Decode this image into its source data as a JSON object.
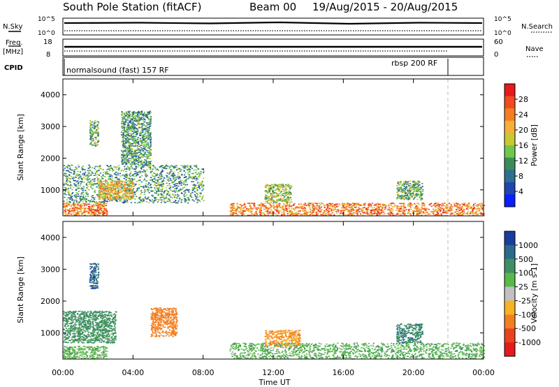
{
  "header": {
    "station": "South Pole Station (fitACF)",
    "beam": "Beam 00",
    "dates": "19/Aug/2015 - 20/Aug/2015"
  },
  "panels": {
    "sky_label": "N.Sky",
    "search_label": "N.Search",
    "freq_label": "Freq.",
    "freq_unit": "[MHz]",
    "nave_label": "Nave",
    "cpid_label": "CPID",
    "cpid_1": "normalsound (fast) 157 RF",
    "cpid_2": "rbsp 200 RF",
    "noise_left_ticks": [
      "10^5",
      "10^0"
    ],
    "noise_right_ticks": [
      "10^5",
      "10^0"
    ],
    "freq_ticks": [
      "18",
      "8"
    ],
    "nave_ticks": [
      "60",
      "0"
    ]
  },
  "axes": {
    "ylabel": "Slant Range [km]",
    "xlabel": "Time UT",
    "yticks": [
      "4000",
      "3000",
      "2000",
      "1000"
    ],
    "xticks": [
      "00:00",
      "04:00",
      "08:00",
      "12:00",
      "16:00",
      "20:00",
      "00:00"
    ]
  },
  "colorbars": {
    "power": {
      "label": "Power [dB]",
      "ticks": [
        "28",
        "24",
        "20",
        "16",
        "12",
        "8",
        "4"
      ],
      "colors": [
        "#e41a1c",
        "#f24a1f",
        "#f47f20",
        "#f6b03a",
        "#c8c832",
        "#6fc84a",
        "#3c8c5a",
        "#2e6f8f",
        "#1e46b0",
        "#0a1eff"
      ]
    },
    "velocity": {
      "label": "Velocity [m s-1]",
      "ticks": [
        "1000",
        "500",
        "100",
        "25",
        "-25",
        "-100",
        "-500",
        "-1000"
      ],
      "colors": [
        "#1a3c9c",
        "#2b6a8a",
        "#3f8f63",
        "#5ab84a",
        "#c0c0c0",
        "#f6b324",
        "#f47f20",
        "#e8431c",
        "#e41a1c"
      ]
    }
  },
  "chart_data": [
    {
      "type": "heatmap",
      "title": "South Pole Station (fitACF) Beam 00 19/Aug/2015 - 20/Aug/2015",
      "ylabel": "Slant Range [km]",
      "xlabel": "Time UT",
      "xlim": [
        0,
        24
      ],
      "ylim": [
        180,
        4500
      ],
      "z_label": "Power [dB]",
      "z_range": [
        0,
        30
      ],
      "echo_regions": [
        {
          "t0": 0.0,
          "t1": 2.5,
          "r0": 200,
          "r1": 600,
          "level": 24
        },
        {
          "t0": 0.0,
          "t1": 8.0,
          "r0": 600,
          "r1": 1800,
          "level": 12
        },
        {
          "t0": 1.5,
          "t1": 2.0,
          "r0": 2400,
          "r1": 3200,
          "level": 14
        },
        {
          "t0": 3.3,
          "t1": 5.0,
          "r0": 1800,
          "r1": 3500,
          "level": 12
        },
        {
          "t0": 2.0,
          "t1": 4.0,
          "r0": 700,
          "r1": 1300,
          "level": 20
        },
        {
          "t0": 9.5,
          "t1": 24.0,
          "r0": 200,
          "r1": 600,
          "level": 24
        },
        {
          "t0": 11.5,
          "t1": 13.0,
          "r0": 600,
          "r1": 1200,
          "level": 16
        },
        {
          "t0": 19.0,
          "t1": 20.5,
          "r0": 700,
          "r1": 1300,
          "level": 14
        }
      ]
    },
    {
      "type": "heatmap",
      "title": "",
      "ylabel": "Slant Range [km]",
      "xlabel": "Time UT",
      "xlim": [
        0,
        24
      ],
      "ylim": [
        180,
        4500
      ],
      "z_label": "Velocity [m s-1]",
      "z_range": [
        -1000,
        1000
      ],
      "echo_regions": [
        {
          "t0": 0.0,
          "t1": 2.5,
          "r0": 200,
          "r1": 600,
          "level": 60
        },
        {
          "t0": 0.0,
          "t1": 3.0,
          "r0": 700,
          "r1": 1700,
          "level": 200
        },
        {
          "t0": 5.0,
          "t1": 6.5,
          "r0": 900,
          "r1": 1800,
          "level": -300
        },
        {
          "t0": 1.5,
          "t1": 2.0,
          "r0": 2400,
          "r1": 3200,
          "level": 800
        },
        {
          "t0": 9.5,
          "t1": 24.0,
          "r0": 200,
          "r1": 700,
          "level": 80
        },
        {
          "t0": 11.5,
          "t1": 13.5,
          "r0": 600,
          "r1": 1100,
          "level": -120
        },
        {
          "t0": 19.0,
          "t1": 20.5,
          "r0": 700,
          "r1": 1300,
          "level": 400
        }
      ]
    }
  ]
}
